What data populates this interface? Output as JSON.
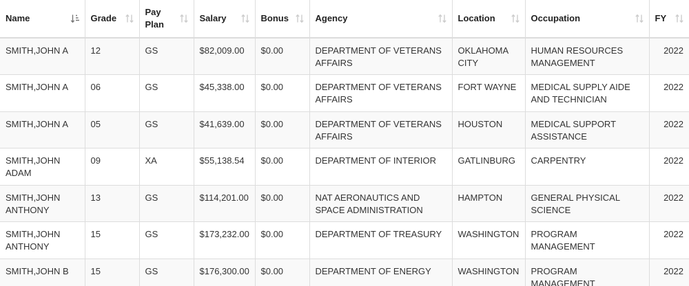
{
  "table": {
    "columns": [
      {
        "key": "name",
        "label": "Name",
        "sort": "asc-active"
      },
      {
        "key": "grade",
        "label": "Grade",
        "sort": "none"
      },
      {
        "key": "pay_plan",
        "label": "Pay Plan",
        "sort": "none"
      },
      {
        "key": "salary",
        "label": "Salary",
        "sort": "none"
      },
      {
        "key": "bonus",
        "label": "Bonus",
        "sort": "none"
      },
      {
        "key": "agency",
        "label": "Agency",
        "sort": "none"
      },
      {
        "key": "location",
        "label": "Location",
        "sort": "none"
      },
      {
        "key": "occupation",
        "label": "Occupation",
        "sort": "none"
      },
      {
        "key": "fy",
        "label": "FY",
        "sort": "none"
      }
    ],
    "rows": [
      {
        "name": "SMITH,JOHN A",
        "grade": "12",
        "pay_plan": "GS",
        "salary": "$82,009.00",
        "bonus": "$0.00",
        "agency": "DEPARTMENT OF VETERANS AFFAIRS",
        "location": "OKLAHOMA CITY",
        "occupation": "HUMAN RESOURCES MANAGEMENT",
        "fy": "2022"
      },
      {
        "name": "SMITH,JOHN A",
        "grade": "06",
        "pay_plan": "GS",
        "salary": "$45,338.00",
        "bonus": "$0.00",
        "agency": "DEPARTMENT OF VETERANS AFFAIRS",
        "location": "FORT WAYNE",
        "occupation": "MEDICAL SUPPLY AIDE AND TECHNICIAN",
        "fy": "2022"
      },
      {
        "name": "SMITH,JOHN A",
        "grade": "05",
        "pay_plan": "GS",
        "salary": "$41,639.00",
        "bonus": "$0.00",
        "agency": "DEPARTMENT OF VETERANS AFFAIRS",
        "location": "HOUSTON",
        "occupation": "MEDICAL SUPPORT ASSISTANCE",
        "fy": "2022"
      },
      {
        "name": "SMITH,JOHN ADAM",
        "grade": "09",
        "pay_plan": "XA",
        "salary": "$55,138.54",
        "bonus": "$0.00",
        "agency": "DEPARTMENT OF INTERIOR",
        "location": "GATLINBURG",
        "occupation": "CARPENTRY",
        "fy": "2022"
      },
      {
        "name": "SMITH,JOHN ANTHONY",
        "grade": "13",
        "pay_plan": "GS",
        "salary": "$114,201.00",
        "bonus": "$0.00",
        "agency": "NAT AERONAUTICS AND SPACE ADMINISTRATION",
        "location": "HAMPTON",
        "occupation": "GENERAL PHYSICAL SCIENCE",
        "fy": "2022"
      },
      {
        "name": "SMITH,JOHN ANTHONY",
        "grade": "15",
        "pay_plan": "GS",
        "salary": "$173,232.00",
        "bonus": "$0.00",
        "agency": "DEPARTMENT OF TREASURY",
        "location": "WASHINGTON",
        "occupation": "PROGRAM MANAGEMENT",
        "fy": "2022"
      },
      {
        "name": "SMITH,JOHN B",
        "grade": "15",
        "pay_plan": "GS",
        "salary": "$176,300.00",
        "bonus": "$0.00",
        "agency": "DEPARTMENT OF ENERGY",
        "location": "WASHINGTON",
        "occupation": "PROGRAM MANAGEMENT",
        "fy": "2022"
      }
    ]
  }
}
